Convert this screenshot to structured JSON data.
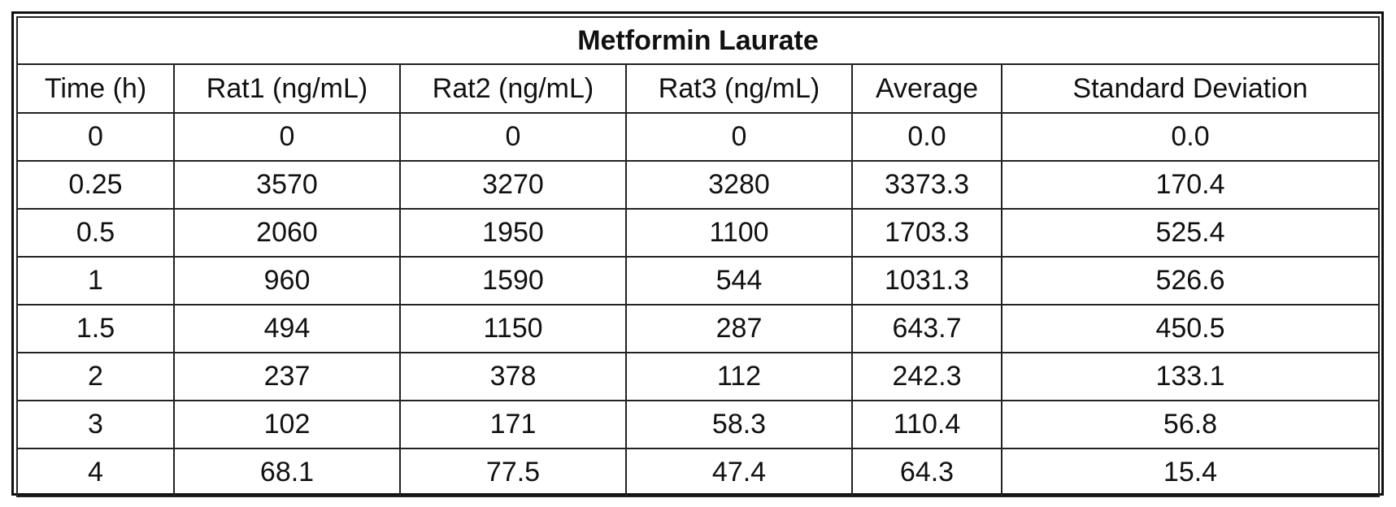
{
  "table": {
    "title": "Metformin Laurate",
    "columns": [
      "Time (h)",
      "Rat1 (ng/mL)",
      "Rat2 (ng/mL)",
      "Rat3 (ng/mL)",
      "Average",
      "Standard Deviation"
    ],
    "rows": [
      [
        "0",
        "0",
        "0",
        "0",
        "0.0",
        "0.0"
      ],
      [
        "0.25",
        "3570",
        "3270",
        "3280",
        "3373.3",
        "170.4"
      ],
      [
        "0.5",
        "2060",
        "1950",
        "1100",
        "1703.3",
        "525.4"
      ],
      [
        "1",
        "960",
        "1590",
        "544",
        "1031.3",
        "526.6"
      ],
      [
        "1.5",
        "494",
        "1150",
        "287",
        "643.7",
        "450.5"
      ],
      [
        "2",
        "237",
        "378",
        "112",
        "242.3",
        "133.1"
      ],
      [
        "3",
        "102",
        "171",
        "58.3",
        "110.4",
        "56.8"
      ],
      [
        "4",
        "68.1",
        "77.5",
        "47.4",
        "64.3",
        "15.4"
      ]
    ]
  }
}
